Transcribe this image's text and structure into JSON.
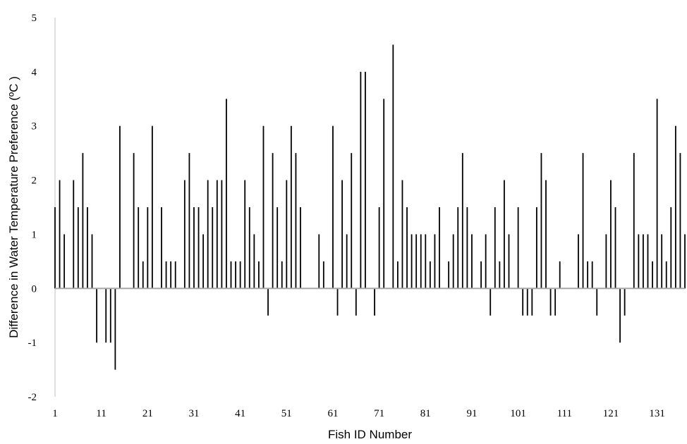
{
  "chart_data": {
    "type": "bar",
    "title": "",
    "xlabel": "Fish ID Number",
    "ylabel": "Difference in Water Temperature Preference (ºC )",
    "ylim": [
      -2,
      5
    ],
    "yticks": [
      -2,
      -1,
      0,
      1,
      2,
      3,
      4,
      5
    ],
    "xticks": [
      1,
      11,
      21,
      31,
      41,
      51,
      61,
      71,
      81,
      91,
      101,
      111,
      121,
      131
    ],
    "xlim": [
      1,
      137
    ],
    "grid": false,
    "legend": "none",
    "bar_color": "#000000",
    "zero_line_color": "#a6a6a6",
    "axis_color": "#bfbfbf",
    "categories": [
      1,
      2,
      3,
      4,
      5,
      6,
      7,
      8,
      9,
      10,
      11,
      12,
      13,
      14,
      15,
      16,
      17,
      18,
      19,
      20,
      21,
      22,
      23,
      24,
      25,
      26,
      27,
      28,
      29,
      30,
      31,
      32,
      33,
      34,
      35,
      36,
      37,
      38,
      39,
      40,
      41,
      42,
      43,
      44,
      45,
      46,
      47,
      48,
      49,
      50,
      51,
      52,
      53,
      54,
      55,
      56,
      57,
      58,
      59,
      60,
      61,
      62,
      63,
      64,
      65,
      66,
      67,
      68,
      69,
      70,
      71,
      72,
      73,
      74,
      75,
      76,
      77,
      78,
      79,
      80,
      81,
      82,
      83,
      84,
      85,
      86,
      87,
      88,
      89,
      90,
      91,
      92,
      93,
      94,
      95,
      96,
      97,
      98,
      99,
      100,
      101,
      102,
      103,
      104,
      105,
      106,
      107,
      108,
      109,
      110,
      111,
      112,
      113,
      114,
      115,
      116,
      117,
      118,
      119,
      120,
      121,
      122,
      123,
      124,
      125,
      126,
      127,
      128,
      129,
      130,
      131,
      132,
      133,
      134,
      135,
      136,
      137
    ],
    "values": [
      1.5,
      2,
      1,
      0,
      2,
      1.5,
      2.5,
      1.5,
      1,
      -1,
      0,
      -1,
      -1,
      -1.5,
      3,
      0,
      0,
      2.5,
      1.5,
      0.5,
      1.5,
      3,
      0,
      1.5,
      0.5,
      0.5,
      0.5,
      0,
      2,
      2.5,
      1.5,
      1.5,
      1,
      2,
      1.5,
      2,
      2,
      3.5,
      0.5,
      0.5,
      0.5,
      2,
      1.5,
      1,
      0.5,
      3,
      -0.5,
      2.5,
      1.5,
      0.5,
      2,
      3,
      2.5,
      1.5,
      0,
      0,
      0,
      1,
      0.5,
      0,
      3,
      -0.5,
      2,
      1,
      2.5,
      -0.5,
      4,
      4,
      0,
      -0.5,
      1.5,
      3.5,
      0,
      4.5,
      0.5,
      2,
      1.5,
      1,
      1,
      1,
      1,
      0.5,
      1,
      1.5,
      0,
      0.5,
      1,
      1.5,
      2.5,
      1.5,
      1,
      0,
      0.5,
      1,
      -0.5,
      1.5,
      0.5,
      2,
      1,
      0,
      1.5,
      -0.5,
      -0.5,
      -0.5,
      1.5,
      2.5,
      2,
      -0.5,
      -0.5,
      0.5,
      0,
      0,
      0,
      1,
      2.5,
      0.5,
      0.5,
      -0.5,
      0,
      1,
      2,
      1.5,
      -1,
      -0.5,
      0,
      2.5,
      1,
      1,
      1,
      0.5,
      3.5,
      1,
      0.5,
      1.5,
      3,
      2.5,
      1
    ]
  }
}
